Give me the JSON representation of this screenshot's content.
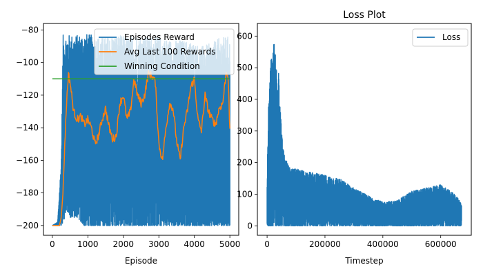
{
  "chart_data": [
    {
      "type": "line",
      "title": "",
      "xlabel": "Episode",
      "ylabel": "",
      "xlim": [
        -250,
        5250
      ],
      "ylim": [
        -206,
        -76
      ],
      "x_ticks": [
        0,
        1000,
        2000,
        3000,
        4000,
        5000
      ],
      "y_ticks": [
        -200,
        -180,
        -160,
        -140,
        -120,
        -100,
        -80
      ],
      "legend_position": "top-right",
      "series": [
        {
          "name": "Episodes Reward",
          "color": "#1f77b4",
          "style": "noisy-envelope",
          "x": [
            0,
            150,
            250,
            280,
            300,
            400,
            500,
            700,
            900,
            1100,
            1300,
            1500,
            1800,
            2100,
            2400,
            2700,
            3000,
            3300,
            3600,
            3900,
            4200,
            4500,
            4700,
            4900,
            5000
          ],
          "upper": [
            -200,
            -198,
            -160,
            -120,
            -83,
            -83,
            -83,
            -83,
            -82,
            -83,
            -84,
            -84,
            -83,
            -84,
            -83,
            -84,
            -84,
            -86,
            -86,
            -87,
            -90,
            -88,
            -85,
            -84,
            -84
          ],
          "lower": [
            -200,
            -200,
            -200,
            -200,
            -200,
            -190,
            -195,
            -195,
            -200,
            -200,
            -200,
            -200,
            -200,
            -200,
            -200,
            -200,
            -200,
            -200,
            -200,
            -200,
            -200,
            -200,
            -200,
            -200,
            -200
          ]
        },
        {
          "name": "Avg Last 100 Rewards",
          "color": "#ff7f0e",
          "x": [
            0,
            100,
            200,
            250,
            300,
            350,
            400,
            450,
            500,
            600,
            700,
            800,
            900,
            1000,
            1100,
            1200,
            1300,
            1400,
            1500,
            1600,
            1700,
            1800,
            1900,
            2000,
            2100,
            2200,
            2300,
            2400,
            2500,
            2600,
            2700,
            2800,
            2900,
            3000,
            3100,
            3200,
            3300,
            3400,
            3500,
            3600,
            3700,
            3800,
            3900,
            4000,
            4100,
            4200,
            4300,
            4400,
            4500,
            4600,
            4700,
            4800,
            4850,
            4900,
            4950,
            5000
          ],
          "values": [
            -200,
            -200,
            -200,
            -195,
            -180,
            -150,
            -125,
            -107,
            -112,
            -130,
            -135,
            -133,
            -138,
            -135,
            -140,
            -150,
            -145,
            -135,
            -128,
            -140,
            -147,
            -145,
            -125,
            -120,
            -135,
            -130,
            -110,
            -120,
            -125,
            -120,
            -107,
            -108,
            -112,
            -150,
            -160,
            -140,
            -125,
            -128,
            -148,
            -160,
            -140,
            -130,
            -115,
            -110,
            -135,
            -142,
            -120,
            -130,
            -135,
            -138,
            -128,
            -125,
            -115,
            -105,
            -108,
            -143
          ]
        },
        {
          "name": "Winning Condition",
          "color": "#2ca02c",
          "x": [
            0,
            5000
          ],
          "values": [
            -110,
            -110
          ]
        }
      ]
    },
    {
      "type": "line",
      "title": "Loss Plot",
      "xlabel": "Timestep",
      "ylabel": "",
      "xlim": [
        -33600,
        705600
      ],
      "ylim": [
        -30,
        640
      ],
      "x_ticks": [
        0,
        200000,
        400000,
        600000
      ],
      "y_ticks": [
        0,
        100,
        200,
        300,
        400,
        500,
        600
      ],
      "legend_position": "top-right",
      "series": [
        {
          "name": "Loss",
          "color": "#1f77b4",
          "style": "noisy-envelope",
          "x": [
            0,
            5000,
            10000,
            15000,
            20000,
            25000,
            30000,
            40000,
            50000,
            60000,
            70000,
            80000,
            100000,
            150000,
            200000,
            250000,
            300000,
            350000,
            400000,
            450000,
            500000,
            550000,
            600000,
            650000,
            672000
          ],
          "upper": [
            150,
            390,
            480,
            560,
            540,
            612,
            530,
            520,
            300,
            220,
            200,
            180,
            180,
            170,
            160,
            150,
            120,
            95,
            75,
            80,
            110,
            120,
            130,
            100,
            70
          ],
          "lower": [
            0,
            0,
            0,
            0,
            0,
            0,
            0,
            0,
            0,
            0,
            0,
            0,
            0,
            0,
            0,
            0,
            0,
            0,
            0,
            0,
            0,
            0,
            0,
            0,
            0
          ]
        }
      ]
    }
  ]
}
